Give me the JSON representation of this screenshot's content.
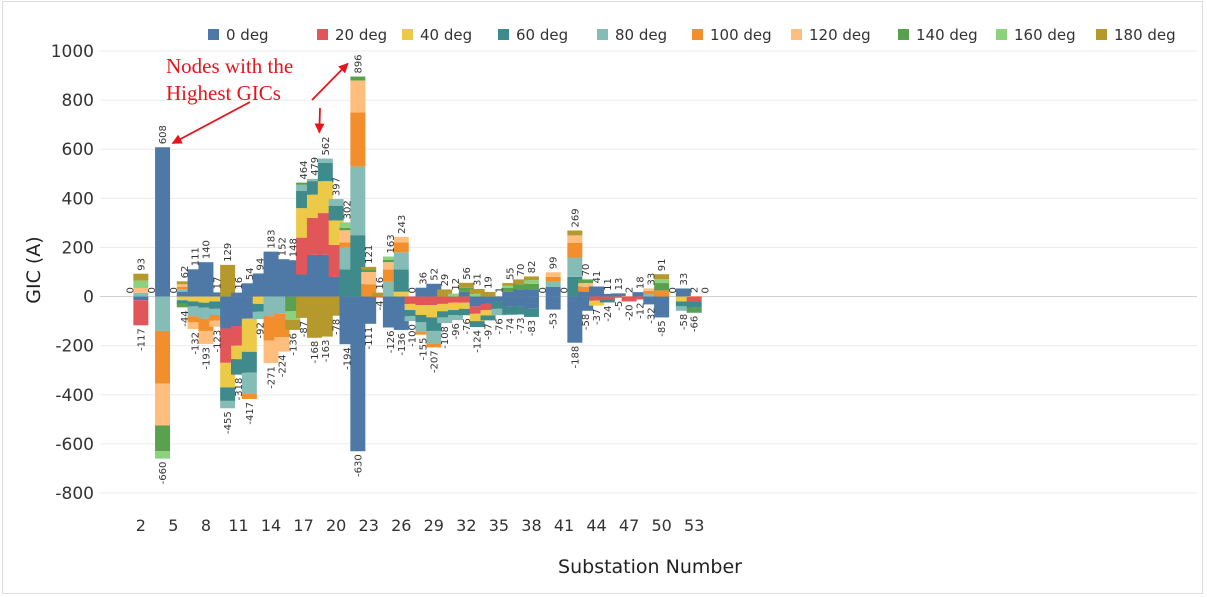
{
  "chart_data": {
    "type": "bar",
    "stacked": true,
    "xlabel": "Substation Number",
    "ylabel": "GIC (A)",
    "ylim": [
      -800,
      1000
    ],
    "yticks": [
      1000,
      800,
      600,
      400,
      200,
      0,
      -200,
      -400,
      -600,
      -800
    ],
    "xticks": [
      "2",
      "5",
      "8",
      "11",
      "14",
      "17",
      "20",
      "23",
      "26",
      "29",
      "32",
      "35",
      "38",
      "41",
      "44",
      "47",
      "50",
      "53"
    ],
    "grid": true,
    "legend_position": "top",
    "series": [
      {
        "name": "0 deg",
        "color": "#4e79a7"
      },
      {
        "name": "20 deg",
        "color": "#e15759"
      },
      {
        "name": "40 deg",
        "color": "#edc948"
      },
      {
        "name": "60 deg",
        "color": "#3f8a8a"
      },
      {
        "name": "80 deg",
        "color": "#86bcb6"
      },
      {
        "name": "100 deg",
        "color": "#f28e2b"
      },
      {
        "name": "120 deg",
        "color": "#ffbe7d"
      },
      {
        "name": "140 deg",
        "color": "#59a14f"
      },
      {
        "name": "160 deg",
        "color": "#8cd17d"
      },
      {
        "name": "180 deg",
        "color": "#b6992d"
      }
    ],
    "substations": [
      1,
      2,
      3,
      4,
      5,
      6,
      7,
      8,
      9,
      10,
      11,
      12,
      13,
      14,
      15,
      16,
      17,
      18,
      19,
      20,
      21,
      22,
      23,
      24,
      25,
      26,
      27,
      28,
      29,
      30,
      31,
      32,
      33,
      34,
      35,
      36,
      37,
      38,
      39,
      40,
      41,
      42,
      43,
      44,
      45,
      46,
      47,
      48,
      49,
      50,
      51,
      52,
      53,
      54
    ],
    "max_labels": [
      "0",
      "93",
      "0",
      "608",
      "0",
      "62",
      "111",
      "140",
      "17",
      "129",
      "16",
      "54",
      "94",
      "183",
      "152",
      "148",
      "464",
      "479",
      "562",
      "397",
      "302",
      "896",
      "121",
      "16",
      "163",
      "243",
      "0",
      "36",
      "52",
      "29",
      "12",
      "56",
      "31",
      "19",
      "1",
      "55",
      "70",
      "82",
      "0",
      "99",
      "0",
      "269",
      "70",
      "41",
      "11",
      "13",
      "2",
      "18",
      "33",
      "91",
      "0",
      "33",
      "2",
      "0"
    ],
    "min_labels": [
      "",
      "-117",
      "",
      "-660",
      "",
      "-44",
      "-132",
      "-193",
      "-123",
      "-455",
      "-318",
      "-417",
      "-92",
      "-271",
      "-224",
      "-136",
      "-87",
      "-168",
      "-163",
      "-78",
      "-194",
      "-630",
      "-111",
      "-4",
      "-126",
      "-136",
      "-100",
      "-155",
      "-207",
      "-108",
      "-96",
      "-76",
      "-124",
      "-97",
      "-76",
      "-74",
      "-73",
      "-83",
      "",
      "-53",
      "",
      "-188",
      "-58",
      "-37",
      "-24",
      "-5",
      "-20",
      "-12",
      "-32",
      "-85",
      "",
      "-58",
      "-66",
      ""
    ],
    "pos_values": [
      [
        0,
        0,
        0,
        0,
        0,
        0,
        0,
        0,
        0,
        0
      ],
      [
        0,
        0,
        0,
        0,
        15,
        0,
        20,
        0,
        30,
        28
      ],
      [
        0,
        0,
        0,
        0,
        0,
        0,
        0,
        0,
        0,
        0
      ],
      [
        608,
        0,
        0,
        0,
        0,
        0,
        0,
        0,
        0,
        0
      ],
      [
        0,
        0,
        0,
        0,
        0,
        0,
        0,
        0,
        0,
        0
      ],
      [
        20,
        0,
        0,
        0,
        10,
        10,
        10,
        0,
        0,
        12
      ],
      [
        111,
        0,
        0,
        0,
        0,
        0,
        0,
        0,
        0,
        0
      ],
      [
        140,
        0,
        0,
        0,
        0,
        0,
        0,
        0,
        0,
        0
      ],
      [
        17,
        0,
        0,
        0,
        0,
        0,
        0,
        0,
        0,
        0
      ],
      [
        0,
        0,
        0,
        0,
        0,
        0,
        0,
        0,
        0,
        129
      ],
      [
        16,
        0,
        0,
        0,
        0,
        0,
        0,
        0,
        0,
        0
      ],
      [
        54,
        0,
        0,
        0,
        0,
        0,
        0,
        0,
        0,
        0
      ],
      [
        94,
        0,
        0,
        0,
        0,
        0,
        0,
        0,
        0,
        0
      ],
      [
        183,
        0,
        0,
        0,
        0,
        0,
        0,
        0,
        0,
        0
      ],
      [
        152,
        0,
        0,
        0,
        0,
        0,
        0,
        0,
        0,
        0
      ],
      [
        148,
        0,
        0,
        0,
        0,
        0,
        0,
        0,
        0,
        0
      ],
      [
        90,
        150,
        120,
        70,
        25,
        0,
        0,
        9,
        0,
        0
      ],
      [
        170,
        150,
        95,
        55,
        9,
        0,
        0,
        0,
        0,
        0
      ],
      [
        170,
        170,
        130,
        75,
        17,
        0,
        0,
        0,
        0,
        0
      ],
      [
        80,
        130,
        100,
        60,
        27,
        0,
        0,
        0,
        0,
        0
      ],
      [
        0,
        0,
        0,
        110,
        90,
        20,
        50,
        10,
        22,
        0
      ],
      [
        0,
        0,
        0,
        250,
        280,
        220,
        130,
        16,
        0,
        0
      ],
      [
        0,
        0,
        0,
        0,
        0,
        50,
        50,
        10,
        0,
        11
      ],
      [
        0,
        0,
        0,
        0,
        0,
        0,
        0,
        0,
        0,
        16
      ],
      [
        0,
        0,
        0,
        0,
        60,
        50,
        30,
        10,
        13,
        0
      ],
      [
        0,
        0,
        20,
        90,
        70,
        40,
        23,
        0,
        0,
        0
      ],
      [
        0,
        0,
        0,
        0,
        0,
        0,
        0,
        0,
        0,
        0
      ],
      [
        36,
        0,
        0,
        0,
        0,
        0,
        0,
        0,
        0,
        0
      ],
      [
        52,
        0,
        0,
        0,
        0,
        0,
        0,
        0,
        0,
        0
      ],
      [
        0,
        0,
        0,
        0,
        0,
        0,
        0,
        0,
        0,
        29
      ],
      [
        0,
        0,
        0,
        0,
        0,
        0,
        0,
        0,
        12,
        0
      ],
      [
        20,
        0,
        0,
        0,
        0,
        0,
        0,
        16,
        0,
        20
      ],
      [
        0,
        0,
        0,
        0,
        0,
        0,
        0,
        0,
        11,
        20
      ],
      [
        0,
        0,
        0,
        0,
        0,
        0,
        0,
        0,
        0,
        19
      ],
      [
        0,
        0,
        0,
        0,
        0,
        0,
        0,
        0,
        1,
        0
      ],
      [
        20,
        0,
        0,
        0,
        0,
        0,
        0,
        15,
        10,
        10
      ],
      [
        30,
        0,
        0,
        0,
        0,
        0,
        0,
        20,
        0,
        20
      ],
      [
        30,
        0,
        0,
        0,
        0,
        0,
        0,
        22,
        15,
        15
      ],
      [
        0,
        0,
        0,
        0,
        0,
        0,
        0,
        0,
        0,
        0
      ],
      [
        40,
        0,
        0,
        0,
        20,
        20,
        19,
        0,
        0,
        0
      ],
      [
        0,
        0,
        0,
        0,
        0,
        0,
        0,
        0,
        0,
        0
      ],
      [
        0,
        0,
        0,
        80,
        79,
        60,
        30,
        0,
        0,
        20
      ],
      [
        20,
        0,
        0,
        0,
        0,
        20,
        15,
        15,
        0,
        0
      ],
      [
        41,
        0,
        0,
        0,
        0,
        0,
        0,
        0,
        0,
        0
      ],
      [
        11,
        0,
        0,
        0,
        0,
        0,
        0,
        0,
        0,
        0
      ],
      [
        13,
        0,
        0,
        0,
        0,
        0,
        0,
        0,
        0,
        0
      ],
      [
        0,
        0,
        0,
        0,
        0,
        0,
        2,
        0,
        0,
        0
      ],
      [
        18,
        0,
        0,
        0,
        0,
        0,
        0,
        0,
        0,
        0
      ],
      [
        0,
        0,
        0,
        0,
        10,
        13,
        10,
        0,
        0,
        0
      ],
      [
        0,
        0,
        0,
        0,
        0,
        25,
        0,
        30,
        16,
        20
      ],
      [
        0,
        0,
        0,
        0,
        0,
        0,
        0,
        0,
        0,
        0
      ],
      [
        33,
        0,
        0,
        0,
        0,
        0,
        0,
        0,
        0,
        0
      ],
      [
        0,
        0,
        0,
        0,
        0,
        0,
        2,
        0,
        0,
        0
      ],
      [
        0,
        0,
        0,
        0,
        0,
        0,
        0,
        0,
        0,
        0
      ]
    ],
    "neg_values": [
      [
        0,
        0,
        0,
        0,
        0,
        0,
        0,
        0,
        0,
        0
      ],
      [
        -15,
        -102,
        0,
        0,
        0,
        0,
        0,
        0,
        0,
        0
      ],
      [
        0,
        0,
        0,
        0,
        0,
        0,
        0,
        0,
        0,
        0
      ],
      [
        0,
        0,
        0,
        0,
        -140,
        -215,
        -170,
        -105,
        -30,
        0
      ],
      [
        0,
        0,
        0,
        0,
        0,
        0,
        0,
        0,
        0,
        0
      ],
      [
        0,
        0,
        -15,
        -15,
        0,
        0,
        0,
        -14,
        0,
        0
      ],
      [
        0,
        0,
        -20,
        -20,
        -40,
        -25,
        -27,
        0,
        0,
        0
      ],
      [
        0,
        0,
        -25,
        -20,
        -45,
        -50,
        -53,
        0,
        0,
        0
      ],
      [
        0,
        0,
        -20,
        -30,
        -25,
        -23,
        -25,
        0,
        0,
        0
      ],
      [
        -130,
        -140,
        -100,
        -55,
        -30,
        0,
        0,
        0,
        0,
        0
      ],
      [
        -120,
        -80,
        -55,
        -63,
        0,
        0,
        0,
        0,
        0,
        0
      ],
      [
        -90,
        0,
        -135,
        -85,
        -87,
        -20,
        0,
        0,
        0,
        0
      ],
      [
        0,
        0,
        -30,
        -32,
        -30,
        0,
        0,
        0,
        0,
        0
      ],
      [
        0,
        0,
        0,
        0,
        -80,
        -100,
        -91,
        0,
        0,
        0
      ],
      [
        0,
        0,
        0,
        0,
        -70,
        -95,
        -59,
        0,
        0,
        0
      ],
      [
        0,
        0,
        0,
        0,
        0,
        0,
        0,
        -60,
        -35,
        -41
      ],
      [
        0,
        0,
        0,
        0,
        0,
        0,
        0,
        0,
        0,
        -87
      ],
      [
        0,
        0,
        0,
        0,
        0,
        0,
        0,
        0,
        0,
        -168
      ],
      [
        0,
        0,
        0,
        0,
        0,
        0,
        0,
        0,
        0,
        -163
      ],
      [
        0,
        0,
        0,
        0,
        0,
        0,
        0,
        0,
        0,
        -78
      ],
      [
        -194,
        0,
        0,
        0,
        0,
        0,
        0,
        0,
        0,
        0
      ],
      [
        -630,
        0,
        0,
        0,
        0,
        0,
        0,
        0,
        0,
        0
      ],
      [
        -111,
        0,
        0,
        0,
        0,
        0,
        0,
        0,
        0,
        0
      ],
      [
        0,
        -4,
        0,
        0,
        0,
        0,
        0,
        0,
        0,
        0
      ],
      [
        -126,
        0,
        0,
        0,
        0,
        0,
        0,
        0,
        0,
        0
      ],
      [
        -136,
        0,
        0,
        0,
        0,
        0,
        0,
        0,
        0,
        0
      ],
      [
        0,
        -30,
        -25,
        -25,
        -20,
        0,
        0,
        0,
        0,
        0
      ],
      [
        0,
        -35,
        -40,
        -30,
        -40,
        -10,
        0,
        0,
        0,
        0
      ],
      [
        0,
        -35,
        -50,
        -55,
        -50,
        -17,
        0,
        0,
        0,
        0
      ],
      [
        0,
        -30,
        -30,
        -25,
        -23,
        0,
        0,
        0,
        0,
        0
      ],
      [
        0,
        -25,
        -30,
        -20,
        -21,
        0,
        0,
        0,
        0,
        0
      ],
      [
        0,
        -25,
        -25,
        -26,
        0,
        0,
        0,
        0,
        0,
        0
      ],
      [
        -40,
        -30,
        -30,
        -24,
        0,
        0,
        0,
        0,
        0,
        0
      ],
      [
        -30,
        -25,
        -22,
        -20,
        0,
        0,
        0,
        0,
        0,
        0
      ],
      [
        -20,
        0,
        0,
        -30,
        -26,
        0,
        0,
        0,
        0,
        0
      ],
      [
        -40,
        0,
        0,
        -34,
        0,
        0,
        0,
        0,
        0,
        0
      ],
      [
        -40,
        0,
        0,
        -33,
        0,
        0,
        0,
        0,
        0,
        0
      ],
      [
        -50,
        0,
        0,
        -33,
        0,
        0,
        0,
        0,
        0,
        0
      ],
      [
        0,
        0,
        0,
        0,
        0,
        0,
        0,
        0,
        0,
        0
      ],
      [
        -53,
        0,
        0,
        0,
        0,
        0,
        0,
        0,
        0,
        0
      ],
      [
        0,
        0,
        0,
        0,
        0,
        0,
        0,
        0,
        0,
        0
      ],
      [
        -188,
        0,
        0,
        0,
        0,
        0,
        0,
        0,
        0,
        0
      ],
      [
        -58,
        0,
        0,
        0,
        0,
        0,
        0,
        0,
        0,
        0
      ],
      [
        0,
        -17,
        -20,
        0,
        0,
        0,
        0,
        0,
        0,
        0
      ],
      [
        0,
        -12,
        0,
        -12,
        0,
        0,
        0,
        0,
        0,
        0
      ],
      [
        0,
        -5,
        0,
        0,
        0,
        0,
        0,
        0,
        0,
        0
      ],
      [
        0,
        -20,
        0,
        0,
        0,
        0,
        0,
        0,
        0,
        0
      ],
      [
        0,
        -12,
        0,
        0,
        0,
        0,
        0,
        0,
        0,
        0
      ],
      [
        -32,
        0,
        0,
        0,
        0,
        0,
        0,
        0,
        0,
        0
      ],
      [
        -85,
        0,
        0,
        0,
        0,
        0,
        0,
        0,
        0,
        0
      ],
      [
        0,
        0,
        0,
        0,
        0,
        0,
        0,
        0,
        0,
        0
      ],
      [
        0,
        0,
        -20,
        -20,
        -18,
        0,
        0,
        0,
        0,
        0
      ],
      [
        0,
        -20,
        0,
        -26,
        0,
        0,
        0,
        -20,
        0,
        0
      ],
      [
        0,
        0,
        0,
        0,
        0,
        0,
        0,
        0,
        0,
        0
      ]
    ],
    "annotation": {
      "lines": [
        "Nodes with the",
        "Highest GICs"
      ],
      "color": "#e8141b",
      "targets": [
        4,
        19,
        22
      ]
    }
  }
}
